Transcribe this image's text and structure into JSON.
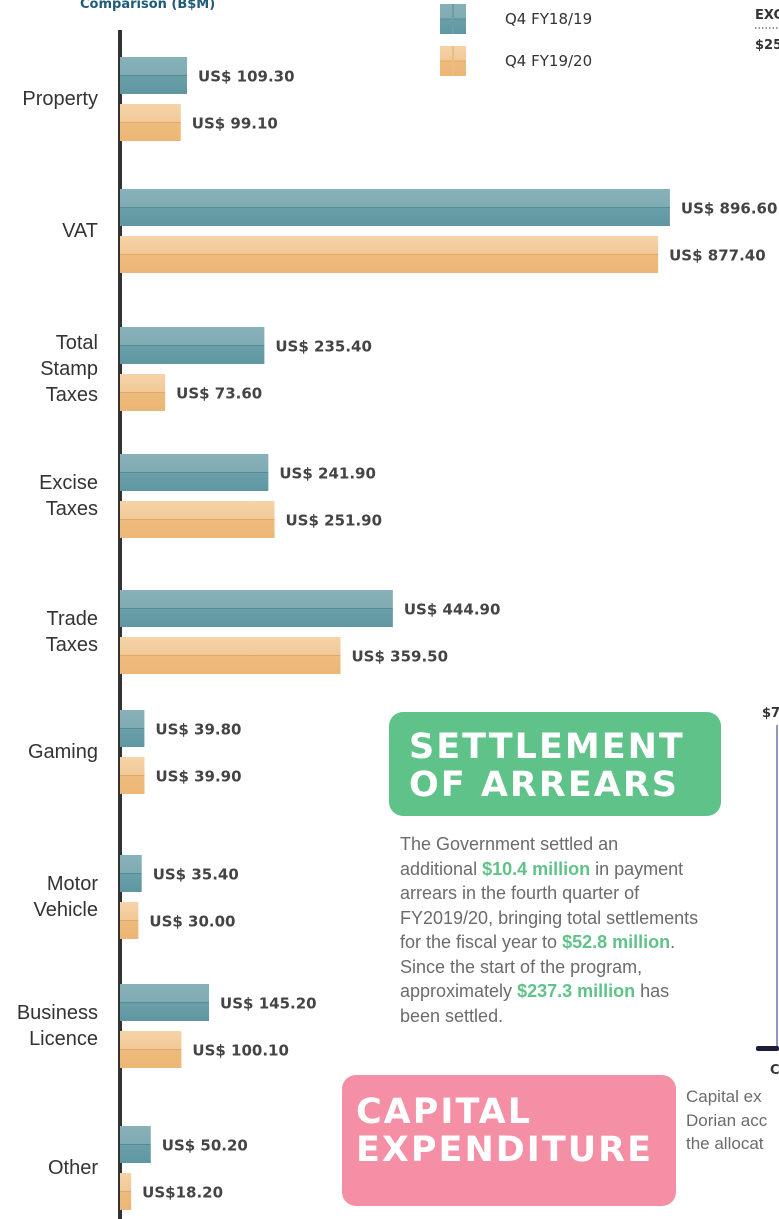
{
  "chart_data": {
    "type": "bar",
    "orientation": "horizontal",
    "subtitle": "Comparison (B$M)",
    "categories": [
      "Property",
      "VAT",
      "Total Stamp Taxes",
      "Excise Taxes",
      "Trade Taxes",
      "Gaming",
      "Motor Vehicle",
      "Business Licence",
      "Other"
    ],
    "series": [
      {
        "name": "Q4 FY18/19",
        "color": "#6a9fa8",
        "values": [
          109.3,
          896.6,
          235.4,
          241.9,
          444.9,
          39.8,
          35.4,
          145.2,
          50.2
        ],
        "value_labels": [
          "US$ 109.30",
          "US$ 896.60",
          "US$ 235.40",
          "US$ 241.90",
          "US$ 444.90",
          "US$ 39.80",
          "US$ 35.40",
          "US$ 145.20",
          "US$ 50.20"
        ]
      },
      {
        "name": "Q4 FY19/20",
        "color": "#eebb7c",
        "values": [
          99.1,
          877.4,
          73.6,
          251.9,
          359.5,
          39.9,
          30.0,
          100.1,
          18.2
        ],
        "value_labels": [
          "US$ 99.10",
          "US$ 877.40",
          "US$ 73.60",
          "US$ 251.90",
          "US$ 359.50",
          "US$ 39.90",
          "US$ 30.00",
          "US$ 100.10",
          "US$18.20"
        ]
      }
    ],
    "xlim": [
      0,
      900
    ]
  },
  "settlement": {
    "title": [
      "SETTLEMENT",
      "OF ARREARS"
    ],
    "paragraph": [
      "The Government settled an additional ",
      "$10.4 million",
      " in payment arrears in the fourth quarter of FY2019/20, bringing total settlements for the fiscal year to ",
      "$52.8 million",
      ". Since the start of the program, approximately ",
      "$237.3 million",
      " has been settled."
    ]
  },
  "capital": {
    "title": [
      "CAPITAL",
      "EXPENDITURE"
    ],
    "text": [
      "Capital ex",
      "Dorian acc",
      "the allocat"
    ]
  },
  "right_edge": {
    "top": [
      "EXC",
      "$25"
    ],
    "middle": "$7",
    "bottom": "C"
  }
}
